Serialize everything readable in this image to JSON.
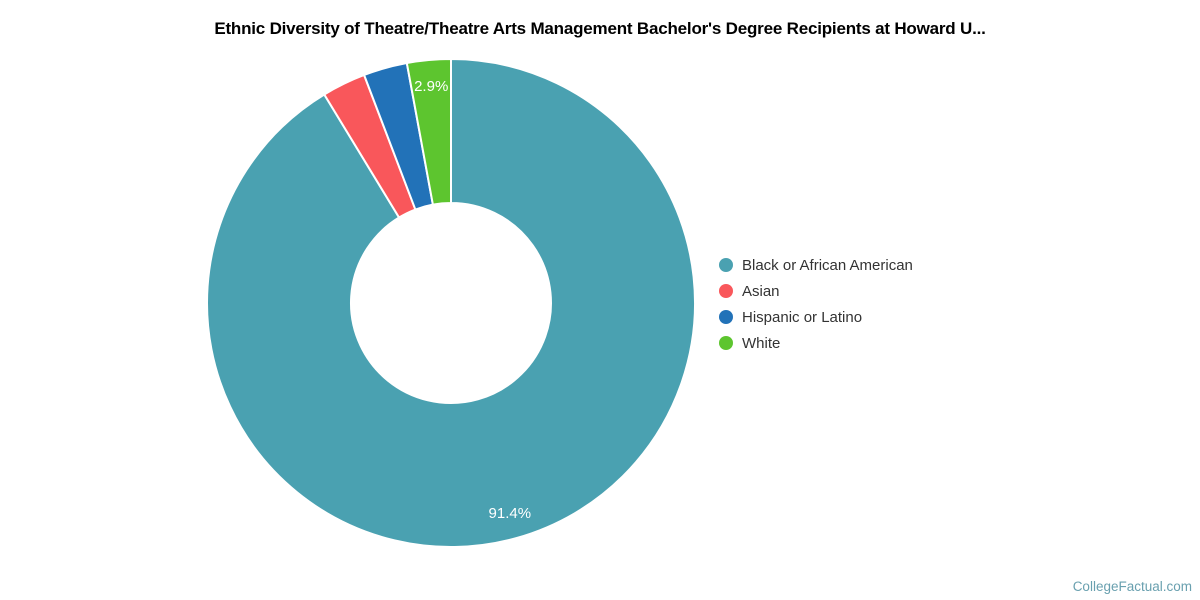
{
  "title": {
    "text": "Ethnic Diversity of Theatre/Theatre Arts Management Bachelor's Degree Recipients at Howard U..."
  },
  "footer": {
    "credit": "CollegeFactual.com"
  },
  "colors": {
    "background": "#ffffff",
    "title_text": "#000000",
    "legend_text": "#333333",
    "slice_label_text": "#ffffff",
    "slice_border": "#ffffff",
    "footer_text": "#69A0AF"
  },
  "chart_data": {
    "type": "pie",
    "subtype": "donut",
    "title": "Ethnic Diversity of Theatre/Theatre Arts Management Bachelor's Degree Recipients at Howard U...",
    "direction": "clockwise",
    "start_angle_deg": 0,
    "inner_radius_ratio": 0.41,
    "legend_position": "right",
    "grid": false,
    "slices": [
      {
        "name": "Black or African American",
        "value": 91.4,
        "percent_label": "91.4%",
        "label_visible": true,
        "color": "#4AA1B1"
      },
      {
        "name": "Asian",
        "value": 2.9,
        "percent_label": "2.9%",
        "label_visible": false,
        "color": "#F9575B"
      },
      {
        "name": "Hispanic or Latino",
        "value": 2.9,
        "percent_label": "2.9%",
        "label_visible": false,
        "color": "#2272B8"
      },
      {
        "name": "White",
        "value": 2.9,
        "percent_label": "2.9%",
        "label_visible": true,
        "color": "#5DC52F"
      }
    ]
  }
}
